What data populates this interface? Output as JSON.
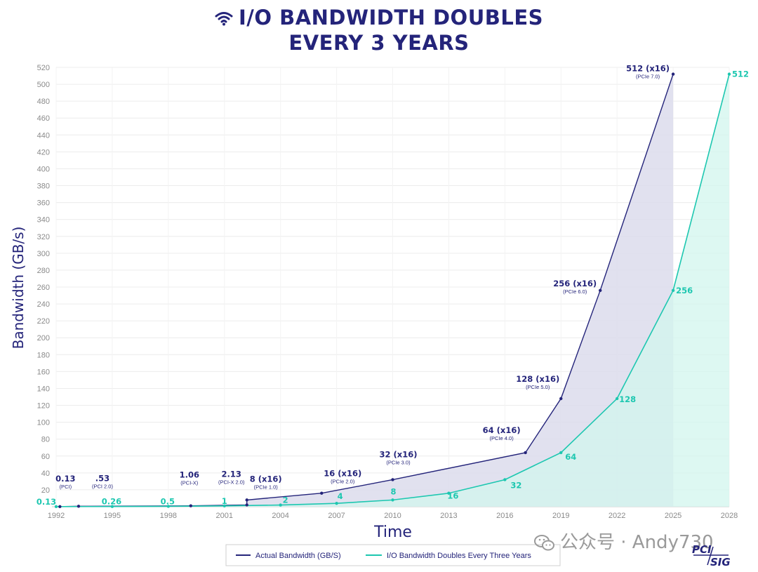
{
  "title": {
    "line1": "I/O BANDWIDTH DOUBLES",
    "line2": "EVERY 3 YEARS"
  },
  "colors": {
    "actual": "#24247a",
    "projected": "#1dc7b0",
    "actual_fill": "#dcdcec",
    "projected_fill": "#d2f5ee",
    "title": "#24247a",
    "tick": "#8a8a8a",
    "grid": "#ececec"
  },
  "chart_data": {
    "type": "area",
    "title": "I/O BANDWIDTH DOUBLES EVERY 3 YEARS",
    "xlabel": "Time",
    "ylabel": "Bandwidth (GB/s)",
    "xlim": [
      1992,
      2028
    ],
    "ylim": [
      0,
      520
    ],
    "x_ticks": [
      "1992",
      "1995",
      "1998",
      "2001",
      "2004",
      "2007",
      "2010",
      "2013",
      "2016",
      "2019",
      "2022",
      "2025",
      "2028"
    ],
    "y_ticks": [
      "520",
      "500",
      "480",
      "460",
      "440",
      "420",
      "400",
      "380",
      "360",
      "340",
      "320",
      "300",
      "280",
      "260",
      "240",
      "220",
      "200",
      "180",
      "160",
      "140",
      "120",
      "100",
      "80",
      "60",
      "40",
      "20"
    ],
    "grid": true,
    "legend": {
      "position": "bottom-center",
      "entries": [
        "Actual Bandwidth (GB/S)",
        "I/O Bandwidth Doubles Every Three Years"
      ]
    },
    "series": [
      {
        "name": "Actual Bandwidth (GB/S)",
        "points": [
          {
            "x": 1992.2,
            "y": 0.13,
            "label": "0.13",
            "sub": "(PCI)"
          },
          {
            "x": 1993.2,
            "y": 0.53,
            "label": ".53",
            "sub": "(PCI 2.0)"
          },
          {
            "x": 1999.2,
            "y": 1.06,
            "label": "1.06",
            "sub": "(PCI-X)"
          },
          {
            "x": 2002.2,
            "y": 2.13,
            "label": "2.13",
            "sub": "(PCI-X 2.0)"
          },
          {
            "x": 2002.2,
            "y": 8,
            "label": "8 (x16)",
            "sub": "(PCIe 1.0)"
          },
          {
            "x": 2006.2,
            "y": 16,
            "label": "16 (x16)",
            "sub": "(PCIe 2.0)"
          },
          {
            "x": 2010.0,
            "y": 32,
            "label": "32 (x16)",
            "sub": "(PCIe 3.0)"
          },
          {
            "x": 2017.1,
            "y": 64,
            "label": "64 (x16)",
            "sub": "(PCIe 4.0)"
          },
          {
            "x": 2019.0,
            "y": 128,
            "label": "128 (x16)",
            "sub": "(PCIe 5.0)"
          },
          {
            "x": 2021.1,
            "y": 256,
            "label": "256 (x16)",
            "sub": "(PCIe 6.0)"
          },
          {
            "x": 2025.0,
            "y": 512,
            "label": "512 (x16)",
            "sub": "(PCIe 7.0)"
          }
        ]
      },
      {
        "name": "I/O Bandwidth Doubles Every Three Years",
        "points": [
          {
            "x": 1992.0,
            "y": 0.13,
            "label": "0.13"
          },
          {
            "x": 1995.0,
            "y": 0.26,
            "label": "0.26"
          },
          {
            "x": 1998.0,
            "y": 0.5,
            "label": "0.5"
          },
          {
            "x": 2001.0,
            "y": 1,
            "label": "1"
          },
          {
            "x": 2004.0,
            "y": 2,
            "label": "2"
          },
          {
            "x": 2007.0,
            "y": 4,
            "label": "4"
          },
          {
            "x": 2010.0,
            "y": 8,
            "label": "8"
          },
          {
            "x": 2013.0,
            "y": 16,
            "label": "16"
          },
          {
            "x": 2016.0,
            "y": 32,
            "label": "32"
          },
          {
            "x": 2019.0,
            "y": 64,
            "label": "64"
          },
          {
            "x": 2022.0,
            "y": 128,
            "label": "128"
          },
          {
            "x": 2025.0,
            "y": 256,
            "label": "256"
          },
          {
            "x": 2028.0,
            "y": 512,
            "label": "512"
          }
        ]
      }
    ]
  },
  "watermark": {
    "text": "公众号 · Andy730",
    "icon": "wechat-icon"
  },
  "logo": {
    "line1": "PCI",
    "line2": "SIG"
  }
}
